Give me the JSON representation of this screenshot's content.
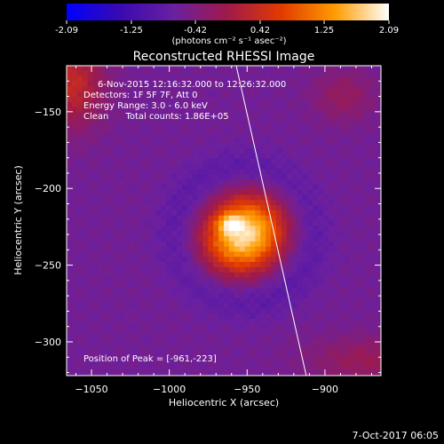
{
  "chart_data": {
    "type": "heatmap",
    "title": "Reconstructed RHESSI Image",
    "colorbar": {
      "ticks": [
        "-2.09",
        "-1.25",
        "-0.42",
        "0.42",
        "1.25",
        "2.09"
      ],
      "min": -2.09,
      "max": 2.09,
      "units_label": "(photons cm⁻² s⁻¹ asec⁻²)",
      "colormap": [
        "#0000ff",
        "#3a0ab0",
        "#6a20a0",
        "#a01a4a",
        "#e23a00",
        "#ff9c00",
        "#ffffff"
      ]
    },
    "xlabel": "Heliocentric X (arcsec)",
    "ylabel": "Heliocentric Y (arcsec)",
    "xlim": [
      -1066,
      -864
    ],
    "ylim": [
      -322,
      -120
    ],
    "x_ticks": [
      -1050,
      -1000,
      -950,
      -900
    ],
    "y_ticks": [
      -150,
      -200,
      -250,
      -300
    ],
    "x_tick_labels": [
      "−1050",
      "−1000",
      "−950",
      "−900"
    ],
    "y_tick_labels": [
      "−150",
      "−200",
      "−250",
      "−300"
    ],
    "annotations": [
      "6-Nov-2015 12:16:32.000 to 12:26:32.000",
      "Detectors: 1F 5F 7F, Att 0",
      "Energy Range: 3.0 - 6.0 keV",
      "Clean      Total counts: 1.86E+05"
    ],
    "peak": {
      "label": "Position of Peak = [-961,-223]",
      "x": -961,
      "y": -223
    },
    "limb_line": {
      "points": [
        [
          -957,
          -120
        ],
        [
          -912,
          -322
        ]
      ]
    },
    "sources": [
      {
        "x": -952,
        "y": -230,
        "sx": 19,
        "sy": 17,
        "amp": 2.5,
        "angle": 0.6
      },
      {
        "x": -961,
        "y": -223,
        "sx": 5,
        "sy": 4,
        "amp": 0.9,
        "angle": 0
      },
      {
        "x": -1062,
        "y": -132,
        "sx": 14,
        "sy": 20,
        "amp": 0.95,
        "angle": 0
      },
      {
        "x": -888,
        "y": -140,
        "sx": 14,
        "sy": 12,
        "amp": 0.45,
        "angle": 0
      },
      {
        "x": -872,
        "y": -312,
        "sx": 28,
        "sy": 11,
        "amp": 0.5,
        "angle": 0
      }
    ],
    "background_level": -0.6,
    "grid": false,
    "footer_date": "7-Oct-2017 06:05"
  }
}
